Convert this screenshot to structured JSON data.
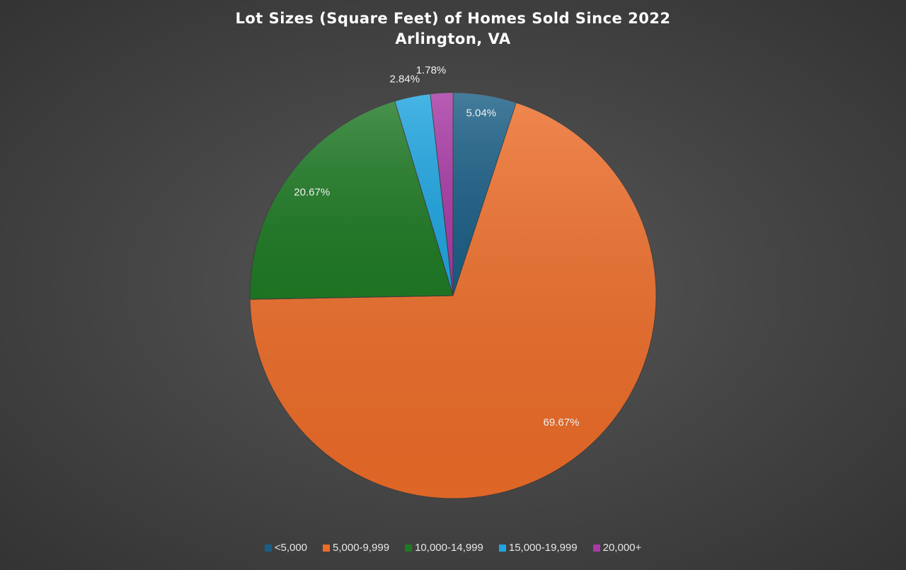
{
  "chart_data": {
    "type": "pie",
    "title": "Lot Sizes (Square Feet) of Homes Sold Since 2022",
    "subtitle": "Arlington, VA",
    "categories": [
      "<5,000",
      "5,000-9,999",
      "10,000-14,999",
      "15,000-19,999",
      "20,000+"
    ],
    "values": [
      5.04,
      69.67,
      20.67,
      2.84,
      1.78
    ],
    "data_labels": [
      "5.04%",
      "69.67%",
      "20.67%",
      "2.84%",
      "1.78%"
    ],
    "colors": [
      "#1b5f86",
      "#ec6c28",
      "#1f7a25",
      "#1fa5e0",
      "#a83aa6"
    ],
    "legend_position": "bottom"
  }
}
